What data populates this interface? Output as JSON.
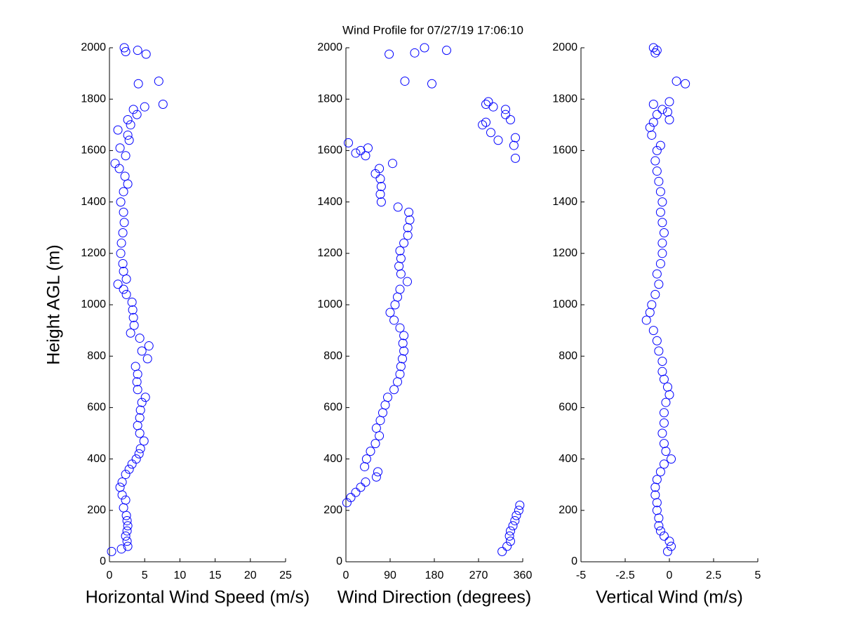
{
  "title": "Wind Profile for  07/27/19 17:06:10",
  "chart_data": [
    {
      "type": "scatter",
      "xlabel": "Horizontal Wind Speed (m/s)",
      "ylabel": "Height AGL (m)",
      "color": "#0000ff",
      "xlim": [
        0,
        25
      ],
      "xticks": [
        0,
        5,
        10,
        15,
        20,
        25
      ],
      "ylim": [
        0,
        2000
      ],
      "yticks": [
        0,
        200,
        400,
        600,
        800,
        1000,
        1200,
        1400,
        1600,
        1800,
        2000
      ],
      "x": [
        0.3,
        1.7,
        2.6,
        2.5,
        2.3,
        2.5,
        2.6,
        2.5,
        2.4,
        2,
        2.3,
        1.8,
        1.5,
        1.8,
        2.3,
        2.8,
        3.2,
        3.8,
        4.2,
        4.4,
        4.9,
        4.3,
        4,
        4.3,
        4.4,
        4.6,
        5.1,
        4,
        3.9,
        4,
        3.7,
        5.4,
        4.6,
        5.6,
        4.3,
        3,
        3.5,
        3.4,
        3.3,
        3.2,
        2.4,
        2,
        1.2,
        2.4,
        2,
        1.9,
        1.6,
        1.7,
        1.9,
        2.1,
        2,
        1.6,
        2,
        2.6,
        2.2,
        1.4,
        0.8,
        2.3,
        1.5,
        2.8,
        2.6,
        1.2,
        3,
        2.6,
        3.9,
        3.4,
        5,
        7.6,
        4.1,
        7,
        5.2,
        4,
        2.3,
        2.1
      ],
      "y": [
        40,
        50,
        60,
        80,
        100,
        120,
        140,
        160,
        180,
        210,
        240,
        260,
        290,
        310,
        340,
        360,
        380,
        400,
        420,
        440,
        470,
        500,
        530,
        560,
        590,
        620,
        640,
        670,
        700,
        730,
        760,
        790,
        820,
        840,
        870,
        890,
        920,
        950,
        980,
        1010,
        1040,
        1060,
        1080,
        1100,
        1130,
        1160,
        1200,
        1240,
        1280,
        1320,
        1360,
        1400,
        1440,
        1470,
        1500,
        1530,
        1550,
        1580,
        1610,
        1640,
        1660,
        1680,
        1700,
        1720,
        1740,
        1760,
        1770,
        1780,
        1860,
        1870,
        1975,
        1990,
        1985,
        2000
      ]
    },
    {
      "type": "scatter",
      "xlabel": "Wind Direction (degrees)",
      "color": "#0000ff",
      "xlim": [
        0,
        360
      ],
      "xticks": [
        0,
        90,
        180,
        270,
        360
      ],
      "ylim": [
        0,
        2000
      ],
      "yticks": [
        0,
        200,
        400,
        600,
        800,
        1000,
        1200,
        1400,
        1600,
        1800,
        2000
      ],
      "x": [
        318,
        328,
        335,
        333,
        335,
        340,
        344,
        347,
        352,
        354,
        2,
        10,
        20,
        30,
        40,
        62,
        65,
        38,
        42,
        50,
        60,
        68,
        62,
        70,
        75,
        80,
        85,
        98,
        105,
        110,
        112,
        115,
        118,
        116,
        118,
        110,
        98,
        90,
        100,
        105,
        110,
        125,
        112,
        108,
        112,
        110,
        118,
        126,
        126,
        130,
        128,
        106,
        72,
        70,
        72,
        70,
        60,
        68,
        95,
        40,
        20,
        30,
        45,
        5,
        345,
        342,
        345,
        310,
        295,
        278,
        285,
        335,
        325,
        325,
        300,
        285,
        290,
        175,
        120,
        88,
        140,
        205,
        160
      ],
      "y": [
        40,
        60,
        80,
        100,
        120,
        140,
        160,
        180,
        200,
        220,
        230,
        250,
        270,
        290,
        310,
        330,
        350,
        370,
        400,
        430,
        460,
        490,
        520,
        550,
        580,
        610,
        640,
        670,
        700,
        730,
        760,
        790,
        820,
        850,
        880,
        910,
        940,
        970,
        1000,
        1030,
        1060,
        1090,
        1120,
        1150,
        1180,
        1210,
        1240,
        1270,
        1300,
        1330,
        1360,
        1380,
        1400,
        1430,
        1460,
        1490,
        1510,
        1530,
        1550,
        1580,
        1590,
        1600,
        1610,
        1630,
        1570,
        1620,
        1650,
        1640,
        1670,
        1700,
        1710,
        1720,
        1740,
        1760,
        1770,
        1780,
        1790,
        1860,
        1870,
        1975,
        1980,
        1990,
        2000
      ]
    },
    {
      "type": "scatter",
      "xlabel": "Vertical Wind (m/s)",
      "color": "#0000ff",
      "xlim": [
        -5,
        5
      ],
      "xticks": [
        -5,
        -2.5,
        0,
        2.5,
        5
      ],
      "ylim": [
        0,
        2000
      ],
      "yticks": [
        0,
        200,
        400,
        600,
        800,
        1000,
        1200,
        1400,
        1600,
        1800,
        2000
      ],
      "x": [
        -0.1,
        0.1,
        0,
        -0.3,
        -0.5,
        -0.6,
        -0.6,
        -0.7,
        -0.7,
        -0.8,
        -0.8,
        -0.7,
        -0.5,
        -0.3,
        0.1,
        -0.2,
        -0.3,
        -0.4,
        -0.3,
        -0.3,
        -0.2,
        0,
        -0.1,
        -0.3,
        -0.4,
        -0.4,
        -0.6,
        -0.7,
        -0.9,
        -1.3,
        -1.1,
        -1,
        -0.8,
        -0.6,
        -0.7,
        -0.5,
        -0.4,
        -0.4,
        -0.3,
        -0.4,
        -0.5,
        -0.4,
        -0.5,
        -0.6,
        -0.7,
        -0.8,
        -0.7,
        -0.5,
        -1,
        -1.1,
        -0.9,
        -0.7,
        -0.4,
        -0.9,
        0,
        -0.1,
        0,
        0.9,
        0.4,
        -0.8,
        -0.7,
        -0.9
      ],
      "y": [
        40,
        60,
        80,
        100,
        120,
        140,
        170,
        200,
        230,
        260,
        290,
        320,
        350,
        380,
        400,
        430,
        460,
        500,
        540,
        580,
        620,
        650,
        680,
        710,
        740,
        780,
        820,
        860,
        900,
        940,
        970,
        1000,
        1040,
        1080,
        1120,
        1160,
        1200,
        1240,
        1280,
        1320,
        1360,
        1400,
        1440,
        1480,
        1520,
        1560,
        1600,
        1620,
        1660,
        1690,
        1710,
        1740,
        1760,
        1780,
        1790,
        1750,
        1720,
        1860,
        1870,
        1980,
        1990,
        2000
      ]
    }
  ]
}
